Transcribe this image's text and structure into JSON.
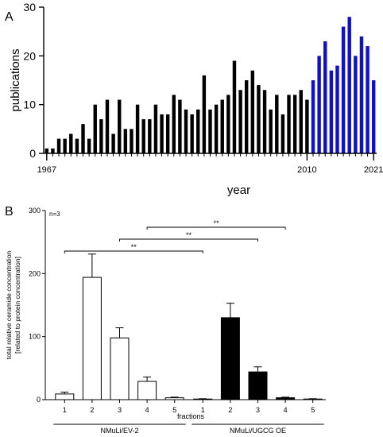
{
  "panels": {
    "a_label": "A",
    "b_label": "B"
  },
  "chart_data": [
    {
      "type": "bar",
      "panel": "A",
      "xlabel": "year",
      "ylabel": "publications",
      "ylim": [
        0,
        30
      ],
      "yticks": [
        0,
        10,
        20,
        30
      ],
      "x_tick_labels": [
        "1967",
        "2010",
        "2021"
      ],
      "x_tick_years": [
        1967,
        2010,
        2021
      ],
      "x": [
        1967,
        1968,
        1969,
        1970,
        1971,
        1972,
        1973,
        1974,
        1975,
        1976,
        1977,
        1978,
        1979,
        1980,
        1981,
        1982,
        1983,
        1984,
        1985,
        1986,
        1987,
        1988,
        1989,
        1990,
        1991,
        1992,
        1993,
        1994,
        1995,
        1996,
        1997,
        1998,
        1999,
        2000,
        2001,
        2002,
        2003,
        2004,
        2005,
        2006,
        2007,
        2008,
        2009,
        2010,
        2011,
        2012,
        2013,
        2014,
        2015,
        2016,
        2017,
        2018,
        2019,
        2020,
        2021
      ],
      "values": [
        1,
        1,
        3,
        3,
        4,
        3,
        6,
        3,
        10,
        7,
        11,
        4,
        11,
        5,
        5,
        10,
        7,
        7,
        10,
        8,
        8,
        12,
        11,
        9,
        8,
        9,
        16,
        9,
        10,
        11,
        12,
        19,
        13,
        15,
        17,
        14,
        13,
        9,
        12,
        8,
        12,
        12,
        13,
        11,
        15,
        20,
        23,
        17,
        18,
        26,
        28,
        20,
        24,
        22,
        15
      ],
      "colors": {
        "before_2011": "#000000",
        "from_2011": "#1010c8"
      },
      "grid": false
    },
    {
      "type": "bar",
      "panel": "B",
      "annotation": "n=3",
      "xlabel": "fractions",
      "ylabel_line1": "total relative ceramide concentration",
      "ylabel_line2": "[related to protein concentration]",
      "ylim": [
        0,
        300
      ],
      "yticks": [
        0,
        100,
        200,
        300
      ],
      "groups": [
        {
          "name": "NMuLi/EV-2",
          "fill": "#ffffff",
          "categories": [
            "1",
            "2",
            "3",
            "4",
            "5"
          ],
          "values": [
            9,
            194,
            98,
            29,
            3
          ],
          "errors": [
            3,
            37,
            16,
            7,
            1
          ]
        },
        {
          "name": "NMuLi/UGCG OE",
          "fill": "#000000",
          "categories": [
            "1",
            "2",
            "3",
            "4",
            "5"
          ],
          "values": [
            1,
            130,
            44,
            3,
            1
          ],
          "errors": [
            0.5,
            23,
            8,
            1,
            0.5
          ]
        }
      ],
      "significance": [
        {
          "from_group": 0,
          "from_fraction": 1,
          "to_group": 1,
          "to_fraction": 1,
          "label": "**"
        },
        {
          "from_group": 0,
          "from_fraction": 3,
          "to_group": 1,
          "to_fraction": 3,
          "label": "**"
        },
        {
          "from_group": 0,
          "from_fraction": 4,
          "to_group": 1,
          "to_fraction": 4,
          "label": "**"
        }
      ],
      "grid": false
    }
  ]
}
